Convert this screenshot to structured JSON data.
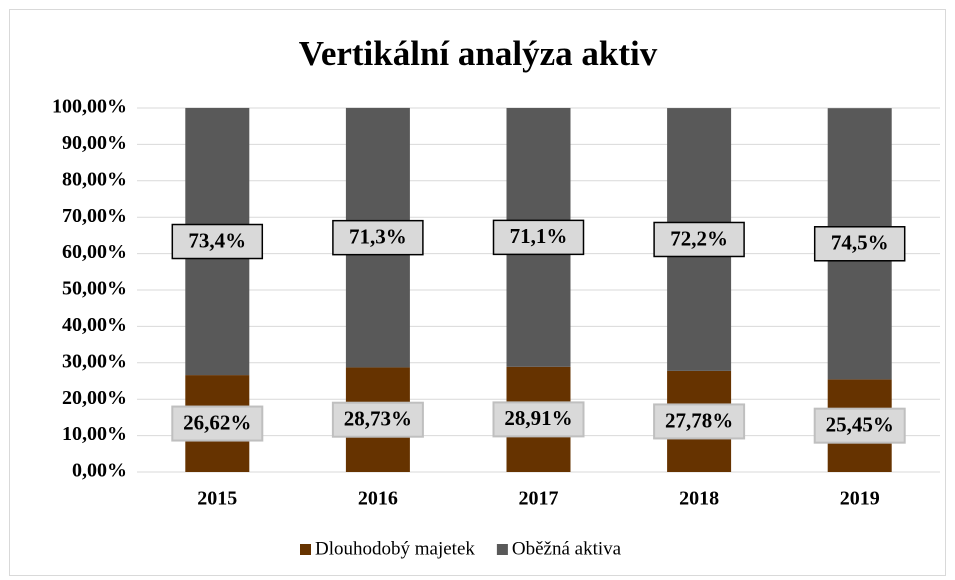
{
  "chart_data": {
    "type": "stacked_bar",
    "title": "Vertikální analýza aktiv",
    "categories": [
      "2015",
      "2016",
      "2017",
      "2018",
      "2019"
    ],
    "series": [
      {
        "name": "Dlouhodobý majetek",
        "color": "#663300",
        "values": [
          26.62,
          28.73,
          28.91,
          27.78,
          25.45
        ],
        "value_labels": [
          "26,62%",
          "28,73%",
          "28,91%",
          "27,78%",
          "25,45%"
        ]
      },
      {
        "name": "Oběžná aktiva",
        "color": "#595959",
        "values": [
          73.4,
          71.3,
          71.1,
          72.2,
          74.5
        ],
        "value_labels": [
          "73,4%",
          "71,3%",
          "71,1%",
          "72,2%",
          "74,5%"
        ]
      }
    ],
    "ylim": [
      0,
      100
    ],
    "yticks": [
      {
        "value": 0,
        "label": "0,00%"
      },
      {
        "value": 10,
        "label": "10,00%"
      },
      {
        "value": 20,
        "label": "20,00%"
      },
      {
        "value": 30,
        "label": "30,00%"
      },
      {
        "value": 40,
        "label": "40,00%"
      },
      {
        "value": 50,
        "label": "50,00%"
      },
      {
        "value": 60,
        "label": "60,00%"
      },
      {
        "value": 70,
        "label": "70,00%"
      },
      {
        "value": 80,
        "label": "80,00%"
      },
      {
        "value": 90,
        "label": "90,00%"
      },
      {
        "value": 100,
        "label": "100,00%"
      }
    ],
    "grid": true,
    "legend": "bottom"
  }
}
